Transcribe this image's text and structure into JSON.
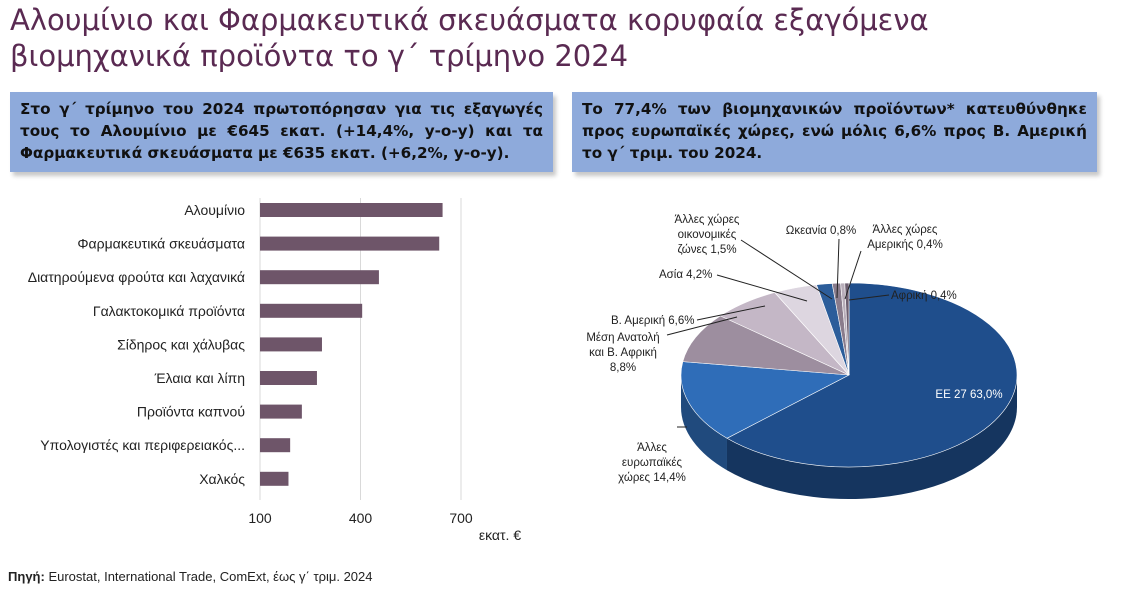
{
  "title": "Αλουμίνιο και Φαρμακευτικά σκευάσματα κορυφαία εξαγόμενα βιομηχανικά προϊόντα το γ΄ τρίμηνο 2024",
  "box_left": "Στο γ΄ τρίμηνο του 2024 πρωτοπόρησαν για τις εξαγωγές τους το Αλουμίνιο με €645 εκατ. (+14,4%, y-o-y) και τα Φαρμακευτικά σκευάσματα με €635 εκατ. (+6,2%, y-o-y).",
  "box_right": "Το 77,4% των βιομηχανικών προϊόντων* κατευθύνθηκε προς ευρωπαϊκές χώρες, ενώ μόλις 6,6% προς Β. Αμερική το γ΄ τριμ. του 2024.",
  "source_label": "Πηγή:",
  "source_text": " Eurostat, International Trade, ComExt, έως γ΄ τριμ. 2024",
  "colors": {
    "title": "#5a2a52",
    "box": "#8eaadb",
    "bar": "#6e5569"
  },
  "chart_data": [
    {
      "type": "bar",
      "orientation": "horizontal",
      "categories": [
        "Αλουμίνιο",
        "Φαρμακευτικά σκευάσματα",
        "Διατηρούμενα φρούτα και λαχανικά",
        "Γαλακτοκομικά προϊόντα",
        "Σίδηρος και χάλυβας",
        "Έλαια και λίπη",
        "Προϊόντα καπνού",
        "Υπολογιστές και περιφερειακός...",
        "Χαλκός"
      ],
      "values": [
        645,
        635,
        455,
        405,
        285,
        270,
        225,
        190,
        185
      ],
      "xlim": [
        100,
        700
      ],
      "xticks": [
        "100",
        "400",
        "700"
      ],
      "xlabel": "εκατ. €"
    },
    {
      "type": "pie",
      "slices": [
        {
          "label": "ΕΕ 27 63,0%",
          "value": 63.0,
          "color": "#1f4e8c"
        },
        {
          "label": "Άλλες ευρωπαϊκές χώρες 14,4%",
          "value": 14.4,
          "color": "#2f6db8"
        },
        {
          "label": "Μέση Ανατολή και Β. Αφρική 8,8%",
          "value": 8.8,
          "color": "#9d8e9f"
        },
        {
          "label": "Β. Αμερική 6,6%",
          "value": 6.6,
          "color": "#c4b7c6"
        },
        {
          "label": "Ασία 4,2%",
          "value": 4.2,
          "color": "#ddd6e0"
        },
        {
          "label": "Άλλες χώρες οικονομικές ζώνες 1,5%",
          "value": 1.5,
          "color": "#2c5d9a"
        },
        {
          "label": "Ωκεανία 0,8%",
          "value": 0.8,
          "color": "#8a7c8c"
        },
        {
          "label": "Άλλες χώρες Αμερικής 0,4%",
          "value": 0.4,
          "color": "#b7adb9"
        },
        {
          "label": "Αφρική 0,4%",
          "value": 0.4,
          "color": "#6d5f70"
        }
      ]
    }
  ]
}
